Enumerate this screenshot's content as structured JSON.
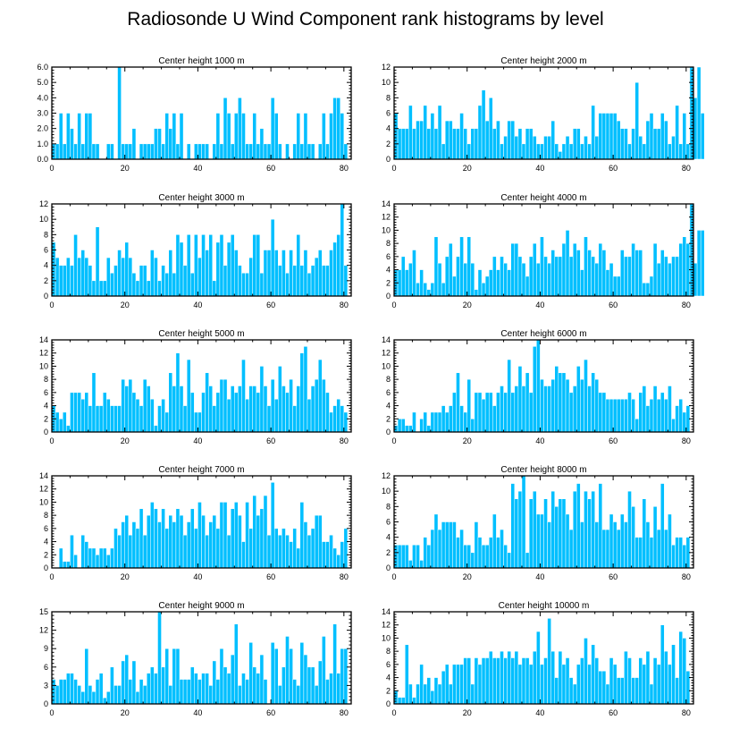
{
  "figure_title": "Radiosonde U Wind Component rank histograms by level",
  "chart_data": [
    {
      "type": "bar",
      "title": "Center height 1000 m",
      "bar_color": "#00bfff",
      "xlim": [
        0,
        82
      ],
      "ylim": [
        0,
        6
      ],
      "xticks": [
        "0",
        "20",
        "40",
        "60",
        "80"
      ],
      "yticks": [
        "0.0",
        "1.0",
        "2.0",
        "3.0",
        "4.0",
        "5.0",
        "6.0"
      ],
      "values": [
        1,
        1,
        3,
        1,
        3,
        2,
        1,
        3,
        1,
        3,
        3,
        1,
        1,
        0,
        0,
        1,
        1,
        0,
        6,
        1,
        1,
        1,
        2,
        0,
        1,
        1,
        1,
        1,
        2,
        2,
        1,
        3,
        2,
        3,
        1,
        3,
        0,
        1,
        0,
        1,
        1,
        1,
        1,
        0,
        1,
        3,
        1,
        4,
        3,
        1,
        3,
        4,
        3,
        1,
        1,
        3,
        1,
        2,
        1,
        1,
        4,
        3,
        1,
        0,
        1,
        0,
        1,
        3,
        1,
        3,
        1,
        1,
        0,
        1,
        3,
        1,
        3,
        4,
        4,
        3,
        1
      ],
      "xlabel": "",
      "ylabel": ""
    },
    {
      "type": "bar",
      "title": "Center height 2000 m",
      "bar_color": "#00bfff",
      "xlim": [
        0,
        82
      ],
      "ylim": [
        0,
        12
      ],
      "xticks": [
        "0",
        "20",
        "40",
        "60",
        "80"
      ],
      "yticks": [
        "0",
        "2",
        "4",
        "6",
        "8",
        "10",
        "12"
      ],
      "values": [
        6,
        4,
        4,
        4,
        7,
        4,
        5,
        5,
        7,
        4,
        6,
        4,
        7,
        2,
        5,
        5,
        4,
        4,
        6,
        4,
        2,
        4,
        4,
        7,
        9,
        5,
        8,
        4,
        5,
        2,
        3,
        5,
        5,
        3,
        4,
        2,
        4,
        4,
        3,
        2,
        2,
        3,
        3,
        5,
        2,
        1,
        2,
        3,
        2,
        4,
        4,
        2,
        3,
        2,
        7,
        3,
        6,
        6,
        6,
        6,
        6,
        5,
        4,
        4,
        2,
        4,
        10,
        3,
        2,
        5,
        6,
        4,
        4,
        6,
        5,
        2,
        3,
        7,
        2,
        6,
        2,
        12,
        8,
        12,
        6
      ],
      "xlabel": "",
      "ylabel": ""
    },
    {
      "type": "bar",
      "title": "Center height 3000 m",
      "bar_color": "#00bfff",
      "xlim": [
        0,
        82
      ],
      "ylim": [
        0,
        12
      ],
      "xticks": [
        "0",
        "20",
        "40",
        "60",
        "80"
      ],
      "yticks": [
        "0",
        "2",
        "4",
        "6",
        "8",
        "10",
        "12"
      ],
      "values": [
        7,
        5,
        4,
        4,
        5,
        4,
        8,
        5,
        6,
        5,
        4,
        2,
        9,
        2,
        2,
        5,
        3,
        4,
        6,
        5,
        7,
        5,
        3,
        2,
        4,
        4,
        2,
        6,
        5,
        2,
        4,
        3,
        6,
        3,
        8,
        7,
        4,
        8,
        3,
        8,
        5,
        8,
        6,
        8,
        2,
        7,
        8,
        4,
        7,
        8,
        6,
        4,
        3,
        3,
        5,
        8,
        8,
        3,
        6,
        6,
        10,
        6,
        4,
        6,
        3,
        6,
        4,
        8,
        4,
        6,
        3,
        4,
        5,
        6,
        4,
        4,
        6,
        7,
        8,
        12,
        4
      ],
      "xlabel": "",
      "ylabel": ""
    },
    {
      "type": "bar",
      "title": "Center height 4000 m",
      "bar_color": "#00bfff",
      "xlim": [
        0,
        82
      ],
      "ylim": [
        0,
        14
      ],
      "xticks": [
        "0",
        "20",
        "40",
        "60",
        "80"
      ],
      "yticks": [
        "0",
        "2",
        "4",
        "6",
        "8",
        "10",
        "12",
        "14"
      ],
      "values": [
        4,
        4,
        6,
        4,
        5,
        7,
        2,
        4,
        2,
        1,
        2,
        9,
        5,
        2,
        6,
        8,
        3,
        6,
        9,
        5,
        9,
        5,
        1,
        4,
        2,
        3,
        4,
        6,
        4,
        6,
        5,
        4,
        8,
        8,
        6,
        5,
        3,
        6,
        8,
        5,
        9,
        6,
        5,
        7,
        6,
        6,
        8,
        10,
        6,
        8,
        7,
        4,
        9,
        7,
        6,
        5,
        8,
        7,
        4,
        5,
        3,
        3,
        7,
        6,
        6,
        8,
        7,
        7,
        2,
        2,
        3,
        8,
        5,
        7,
        6,
        5,
        6,
        6,
        8,
        9,
        8,
        14,
        5,
        10,
        10
      ],
      "xlabel": "",
      "ylabel": ""
    },
    {
      "type": "bar",
      "title": "Center height 5000 m",
      "bar_color": "#00bfff",
      "xlim": [
        0,
        82
      ],
      "ylim": [
        0,
        14
      ],
      "xticks": [
        "0",
        "20",
        "40",
        "60",
        "80"
      ],
      "yticks": [
        "0",
        "2",
        "4",
        "6",
        "8",
        "10",
        "12",
        "14"
      ],
      "values": [
        4,
        3,
        2,
        3,
        1,
        6,
        6,
        6,
        5,
        6,
        4,
        9,
        4,
        4,
        6,
        5,
        4,
        4,
        4,
        8,
        7,
        8,
        6,
        5,
        4,
        8,
        7,
        5,
        1,
        4,
        5,
        3,
        9,
        7,
        12,
        7,
        4,
        11,
        6,
        3,
        3,
        6,
        9,
        7,
        4,
        6,
        8,
        8,
        5,
        7,
        6,
        7,
        11,
        5,
        7,
        7,
        6,
        10,
        7,
        4,
        8,
        5,
        10,
        7,
        6,
        8,
        4,
        7,
        12,
        13,
        5,
        7,
        8,
        11,
        8,
        6,
        3,
        4,
        5,
        4,
        3
      ],
      "xlabel": "",
      "ylabel": ""
    },
    {
      "type": "bar",
      "title": "Center height 6000 m",
      "bar_color": "#00bfff",
      "xlim": [
        0,
        82
      ],
      "ylim": [
        0,
        14
      ],
      "xticks": [
        "0",
        "20",
        "40",
        "60",
        "80"
      ],
      "yticks": [
        "0",
        "2",
        "4",
        "6",
        "8",
        "10",
        "12",
        "14"
      ],
      "values": [
        1,
        2,
        2,
        1,
        1,
        3,
        0,
        2,
        3,
        1,
        3,
        3,
        3,
        4,
        3,
        4,
        6,
        9,
        4,
        3,
        8,
        2,
        6,
        6,
        5,
        6,
        6,
        4,
        6,
        7,
        6,
        11,
        6,
        7,
        10,
        7,
        9,
        6,
        13,
        14,
        8,
        7,
        7,
        8,
        10,
        9,
        9,
        8,
        6,
        7,
        10,
        8,
        11,
        7,
        9,
        8,
        6,
        6,
        5,
        5,
        5,
        5,
        5,
        5,
        6,
        5,
        2,
        6,
        7,
        4,
        5,
        7,
        5,
        6,
        5,
        7,
        2,
        4,
        5,
        3,
        4
      ],
      "xlabel": "",
      "ylabel": ""
    },
    {
      "type": "bar",
      "title": "Center height 7000 m",
      "bar_color": "#00bfff",
      "xlim": [
        0,
        82
      ],
      "ylim": [
        0,
        14
      ],
      "xticks": [
        "0",
        "20",
        "40",
        "60",
        "80"
      ],
      "yticks": [
        "0",
        "2",
        "4",
        "6",
        "8",
        "10",
        "12",
        "14"
      ],
      "values": [
        0,
        0,
        3,
        1,
        1,
        5,
        2,
        0,
        5,
        4,
        3,
        3,
        2,
        3,
        3,
        2,
        3,
        6,
        5,
        7,
        8,
        5,
        7,
        6,
        9,
        5,
        8,
        10,
        9,
        7,
        9,
        6,
        8,
        7,
        9,
        8,
        5,
        7,
        9,
        6,
        10,
        8,
        5,
        7,
        8,
        6,
        10,
        10,
        5,
        9,
        10,
        8,
        4,
        10,
        6,
        11,
        8,
        9,
        11,
        5,
        13,
        6,
        5,
        6,
        5,
        4,
        6,
        3,
        10,
        7,
        5,
        6,
        8,
        8,
        4,
        4,
        5,
        3,
        2,
        4,
        6
      ],
      "xlabel": "",
      "ylabel": ""
    },
    {
      "type": "bar",
      "title": "Center height 8000 m",
      "bar_color": "#00bfff",
      "xlim": [
        0,
        82
      ],
      "ylim": [
        0,
        12
      ],
      "xticks": [
        "0",
        "20",
        "40",
        "60",
        "80"
      ],
      "yticks": [
        "0",
        "2",
        "4",
        "6",
        "8",
        "10",
        "12"
      ],
      "values": [
        3,
        3,
        3,
        3,
        1,
        3,
        3,
        1,
        4,
        3,
        5,
        7,
        5,
        6,
        6,
        6,
        6,
        4,
        5,
        3,
        3,
        2,
        6,
        4,
        3,
        3,
        4,
        7,
        4,
        5,
        3,
        2,
        11,
        9,
        10,
        12,
        2,
        9,
        10,
        7,
        7,
        9,
        6,
        10,
        8,
        9,
        9,
        7,
        5,
        10,
        11,
        6,
        10,
        9,
        10,
        6,
        11,
        5,
        5,
        7,
        6,
        5,
        7,
        6,
        10,
        8,
        4,
        4,
        9,
        6,
        4,
        8,
        5,
        11,
        5,
        7,
        3,
        4,
        4,
        3,
        4
      ],
      "xlabel": "",
      "ylabel": ""
    },
    {
      "type": "bar",
      "title": "Center height 9000 m",
      "bar_color": "#00bfff",
      "xlim": [
        0,
        82
      ],
      "ylim": [
        0,
        15
      ],
      "xticks": [
        "0",
        "20",
        "40",
        "60",
        "80"
      ],
      "yticks": [
        "0",
        "3",
        "6",
        "9",
        "12",
        "15"
      ],
      "values": [
        4,
        3,
        4,
        4,
        5,
        5,
        4,
        3,
        2,
        9,
        3,
        2,
        4,
        5,
        1,
        2,
        6,
        3,
        3,
        7,
        8,
        4,
        7,
        2,
        4,
        3,
        5,
        6,
        5,
        15,
        6,
        9,
        3,
        9,
        9,
        4,
        4,
        4,
        6,
        5,
        4,
        5,
        5,
        3,
        7,
        4,
        9,
        6,
        5,
        8,
        13,
        3,
        5,
        4,
        10,
        6,
        5,
        8,
        4,
        0,
        10,
        9,
        3,
        6,
        11,
        9,
        4,
        3,
        10,
        8,
        6,
        6,
        3,
        7,
        11,
        4,
        5,
        13,
        5,
        9,
        9
      ],
      "xlabel": "",
      "ylabel": ""
    },
    {
      "type": "bar",
      "title": "Center height 10000 m",
      "bar_color": "#00bfff",
      "xlim": [
        0,
        82
      ],
      "ylim": [
        0,
        14
      ],
      "xticks": [
        "0",
        "20",
        "40",
        "60",
        "80"
      ],
      "yticks": [
        "0",
        "2",
        "4",
        "6",
        "8",
        "10",
        "12",
        "14"
      ],
      "values": [
        2,
        1,
        1,
        9,
        3,
        1,
        3,
        6,
        3,
        4,
        2,
        4,
        3,
        5,
        6,
        3,
        6,
        6,
        6,
        7,
        7,
        3,
        7,
        6,
        7,
        7,
        8,
        7,
        7,
        8,
        7,
        8,
        7,
        8,
        6,
        7,
        7,
        6,
        8,
        11,
        6,
        7,
        13,
        8,
        4,
        8,
        6,
        7,
        4,
        3,
        6,
        7,
        10,
        6,
        9,
        7,
        5,
        5,
        3,
        7,
        6,
        4,
        4,
        8,
        7,
        4,
        4,
        7,
        6,
        8,
        3,
        7,
        6,
        12,
        8,
        6,
        9,
        4,
        11,
        10,
        5
      ],
      "xlabel": "",
      "ylabel": ""
    }
  ]
}
